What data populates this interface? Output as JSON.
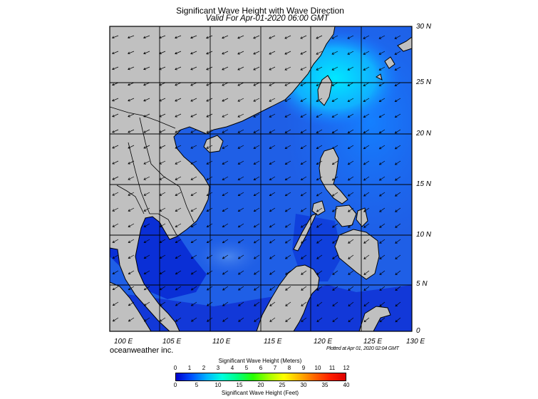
{
  "title": "Significant Wave Height with Wave Direction",
  "subtitle": "Valid For Apr-01-2020 06:00 GMT",
  "brand": "oceanweather inc.",
  "plotted": "Plotted at Apr 01, 2020 02:04 GMT",
  "lat_labels": [
    "30 N",
    "25 N",
    "20 N",
    "15 N",
    "10 N",
    "5 N",
    "0"
  ],
  "lon_labels": [
    "100 E",
    "105 E",
    "110 E",
    "115 E",
    "120 E",
    "125 E",
    "130 E"
  ],
  "colorbar": {
    "title_top": "Significant Wave Height (Meters)",
    "title_bottom": "Significant Wave Height (Feet)",
    "meters": [
      "0",
      "1",
      "2",
      "3",
      "4",
      "5",
      "6",
      "7",
      "8",
      "9",
      "10",
      "11",
      "12"
    ],
    "feet": [
      "0",
      "5",
      "10",
      "15",
      "20",
      "25",
      "30",
      "35",
      "40"
    ],
    "colors": [
      "#0000cc",
      "#0050ff",
      "#00b4ff",
      "#00ffdc",
      "#00ff80",
      "#28ff00",
      "#a0ff00",
      "#ffff00",
      "#ffb400",
      "#ff6400",
      "#ff1e00",
      "#dc0000"
    ]
  },
  "colors": {
    "ocean": "#1f5fe6",
    "land": "#c0c0c0"
  }
}
